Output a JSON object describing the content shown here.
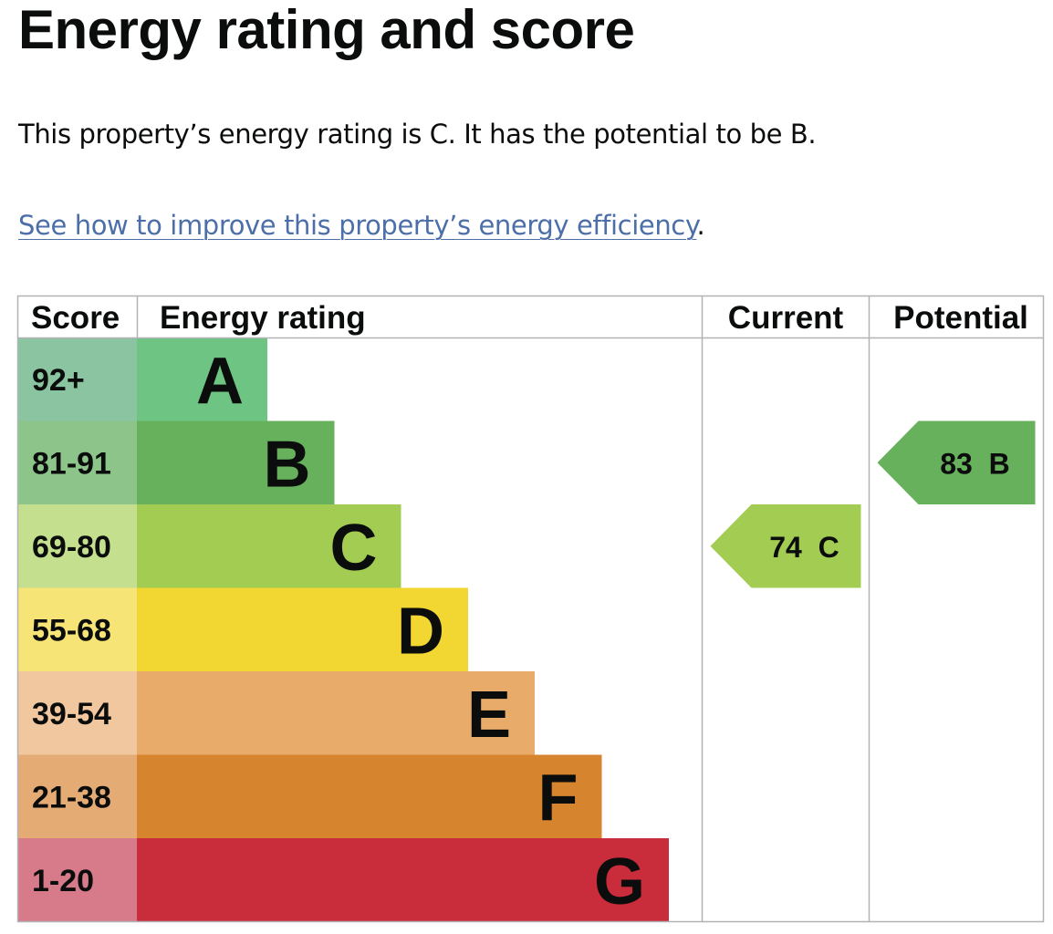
{
  "page": {
    "title": "Energy rating and score",
    "summary": "This property’s energy rating is C. It has the potential to be B.",
    "link_text": "See how to improve this property’s energy efficiency",
    "link_suffix": "."
  },
  "chart_data": {
    "type": "bar",
    "title": "Energy rating and score",
    "headers": {
      "score": "Score",
      "rating": "Energy rating",
      "current": "Current",
      "potential": "Potential"
    },
    "bands": [
      {
        "letter": "A",
        "score_range": "92+",
        "min": 92,
        "color": "#6ec482",
        "score_color": "#8ac4a0"
      },
      {
        "letter": "B",
        "score_range": "81-91",
        "min": 81,
        "color": "#67b15d",
        "score_color": "#8cc48a"
      },
      {
        "letter": "C",
        "score_range": "69-80",
        "min": 69,
        "color": "#a3cc53",
        "score_color": "#c4e08e"
      },
      {
        "letter": "D",
        "score_range": "55-68",
        "min": 55,
        "color": "#f2d631",
        "score_color": "#f7e477"
      },
      {
        "letter": "E",
        "score_range": "39-54",
        "min": 39,
        "color": "#e8ab69",
        "score_color": "#f0c79e"
      },
      {
        "letter": "F",
        "score_range": "21-38",
        "min": 21,
        "color": "#d7842f",
        "score_color": "#e4ab75"
      },
      {
        "letter": "G",
        "score_range": "1-20",
        "min": 1,
        "color": "#c92c3a",
        "score_color": "#d77a89"
      }
    ],
    "current": {
      "score": 74,
      "letter": "C",
      "label": "74 C"
    },
    "potential": {
      "score": 83,
      "letter": "B",
      "label": "83 B"
    }
  }
}
